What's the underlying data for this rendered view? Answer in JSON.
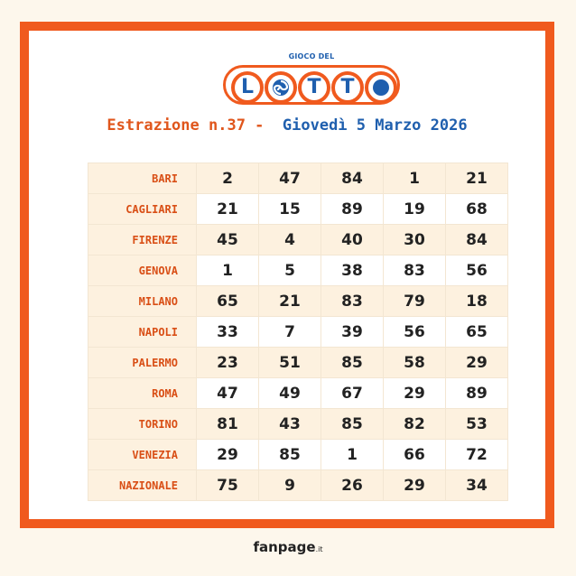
{
  "logo": {
    "top_text": "GIOCO DEL",
    "letters": [
      "L",
      "",
      "T",
      "T",
      ""
    ],
    "brand_colors": {
      "orange": "#f05a1e",
      "blue": "#1f5fae"
    }
  },
  "header": {
    "draw_label": "Estrazione n.37 - ",
    "date": "Giovedì 5 Marzo 2026"
  },
  "rows": [
    {
      "city": "BARI",
      "numbers": [
        "2",
        "47",
        "84",
        "1",
        "21"
      ]
    },
    {
      "city": "CAGLIARI",
      "numbers": [
        "21",
        "15",
        "89",
        "19",
        "68"
      ]
    },
    {
      "city": "FIRENZE",
      "numbers": [
        "45",
        "4",
        "40",
        "30",
        "84"
      ]
    },
    {
      "city": "GENOVA",
      "numbers": [
        "1",
        "5",
        "38",
        "83",
        "56"
      ]
    },
    {
      "city": "MILANO",
      "numbers": [
        "65",
        "21",
        "83",
        "79",
        "18"
      ]
    },
    {
      "city": "NAPOLI",
      "numbers": [
        "33",
        "7",
        "39",
        "56",
        "65"
      ]
    },
    {
      "city": "PALERMO",
      "numbers": [
        "23",
        "51",
        "85",
        "58",
        "29"
      ]
    },
    {
      "city": "ROMA",
      "numbers": [
        "47",
        "49",
        "67",
        "29",
        "89"
      ]
    },
    {
      "city": "TORINO",
      "numbers": [
        "81",
        "43",
        "85",
        "82",
        "53"
      ]
    },
    {
      "city": "VENEZIA",
      "numbers": [
        "29",
        "85",
        "1",
        "66",
        "72"
      ]
    },
    {
      "city": "NAZIONALE",
      "numbers": [
        "75",
        "9",
        "26",
        "29",
        "34"
      ]
    }
  ],
  "footer": {
    "brand": "fanpage",
    "suffix": ".it"
  }
}
